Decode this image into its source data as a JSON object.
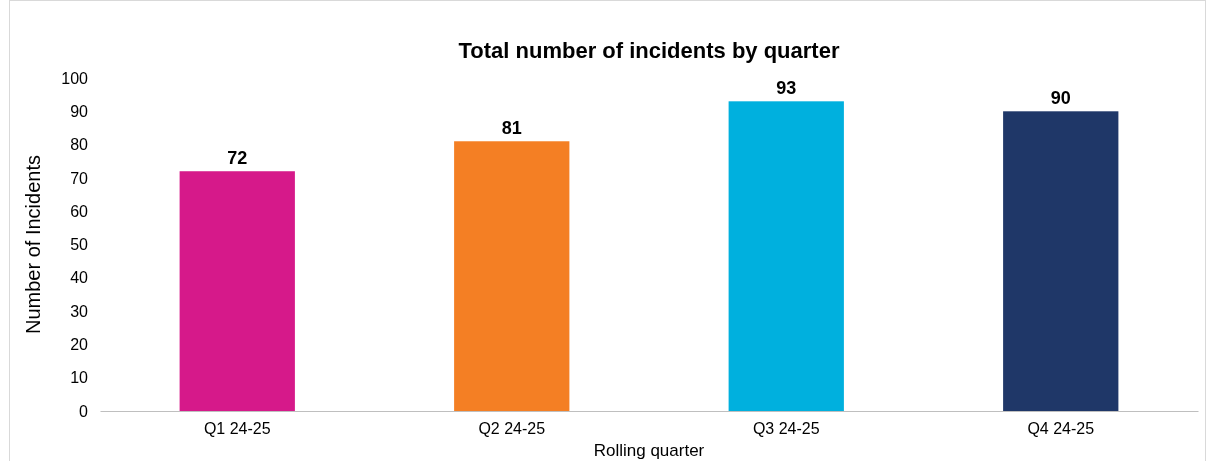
{
  "chart_data": {
    "type": "bar",
    "title": "Total number of incidents by quarter",
    "xlabel": "Rolling quarter",
    "ylabel": "Number of Incidents",
    "categories": [
      "Q1 24-25",
      "Q2 24-25",
      "Q3 24-25",
      "Q4 24-25"
    ],
    "values": [
      72,
      81,
      93,
      90
    ],
    "colors": [
      "#d6198a",
      "#f47f24",
      "#00b0de",
      "#1f3768"
    ],
    "ylim": [
      0,
      100
    ],
    "yticks": [
      0,
      10,
      20,
      30,
      40,
      50,
      60,
      70,
      80,
      90,
      100
    ],
    "data_labels": true
  }
}
